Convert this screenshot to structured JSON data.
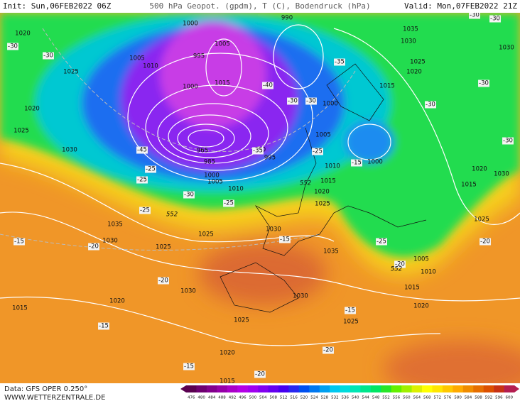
{
  "header": {
    "init": "Init: Sun,06FEB2022 06Z",
    "title": "500 hPa Geopot. (gpdm), T (C), Bodendruck (hPa)",
    "valid": "Valid: Mon,07FEB2022 21Z"
  },
  "map": {
    "isobar_labels": [
      1020,
      1025,
      1020,
      1025,
      1030,
      1035,
      1030,
      1025,
      1025,
      1030,
      1020,
      1015,
      1025,
      1020,
      1015,
      1030,
      1035,
      1030,
      1025,
      1015,
      1020,
      1010,
      1005,
      1015,
      1025,
      1030,
      1020,
      1015,
      1020,
      1025,
      1030,
      1035,
      1030,
      990,
      1000,
      1005,
      1010,
      995,
      1005,
      1015,
      1000,
      1000,
      1005,
      990,
      995,
      1000,
      1005,
      1010,
      1000,
      1010,
      1015,
      1020,
      1025,
      985,
      965
    ],
    "temperature_labels": [
      -30,
      -30,
      -35,
      -40,
      -30,
      -30,
      -30,
      -30,
      -30,
      -30,
      -30,
      -15,
      -20,
      -20,
      -15,
      -15,
      -20,
      -15,
      -15,
      -20,
      -20,
      -25,
      -25,
      -30,
      -25,
      -25,
      -35,
      -45,
      -20,
      -25,
      -15,
      -25
    ],
    "height_labels": [
      552,
      552,
      552
    ]
  },
  "colorbar": {
    "values": [
      476,
      480,
      484,
      488,
      492,
      496,
      500,
      504,
      508,
      512,
      516,
      520,
      524,
      528,
      532,
      536,
      540,
      544,
      548,
      552,
      556,
      560,
      564,
      568,
      572,
      576,
      580,
      584,
      588,
      592,
      596,
      600
    ],
    "colors": [
      "#5a0050",
      "#6e0070",
      "#82008c",
      "#9600a8",
      "#aa00c8",
      "#b400e6",
      "#a000f0",
      "#8200f0",
      "#6400f0",
      "#4600f0",
      "#2828f0",
      "#0050f0",
      "#0078f0",
      "#00a0f0",
      "#00c8f0",
      "#00dcdc",
      "#00e6b4",
      "#00e68c",
      "#00e664",
      "#28e628",
      "#64f000",
      "#a0f000",
      "#dcf000",
      "#ffff00",
      "#ffe600",
      "#ffc800",
      "#ffaa00",
      "#f08c00",
      "#e66e00",
      "#dc5000",
      "#c83214",
      "#b41e50"
    ]
  },
  "footer": {
    "data": "Data: GFS OPER 0.250°",
    "site": "WWW.WETTERZENTRALE.DE"
  }
}
